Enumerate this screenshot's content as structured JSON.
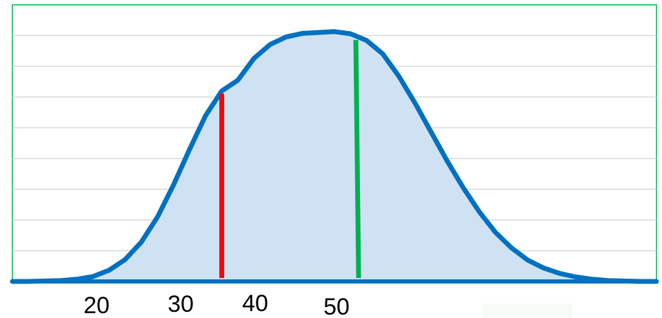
{
  "chart_data": {
    "type": "area",
    "title": "",
    "xlabel": "",
    "ylabel": "",
    "x": [
      10,
      12,
      14,
      16,
      18,
      20,
      22,
      24,
      26,
      28,
      30,
      32,
      34,
      36,
      38,
      40,
      42,
      44,
      46,
      48,
      50,
      52,
      54,
      56,
      58,
      60,
      62,
      64,
      66,
      68,
      70,
      72,
      74,
      76,
      78,
      80,
      82,
      84,
      86,
      88,
      90
    ],
    "series": [
      {
        "values": [
          0.0,
          0.0,
          0.01,
          0.02,
          0.05,
          0.11,
          0.25,
          0.49,
          0.88,
          1.44,
          2.16,
          2.96,
          3.72,
          4.27,
          4.51,
          5.0,
          5.31,
          5.48,
          5.56,
          5.58,
          5.6,
          5.55,
          5.4,
          5.1,
          4.6,
          4.0,
          3.35,
          2.7,
          2.1,
          1.56,
          1.1,
          0.75,
          0.48,
          0.3,
          0.18,
          0.1,
          0.05,
          0.02,
          0.01,
          0.0,
          0.0
        ]
      }
    ],
    "xlim": [
      10,
      90
    ],
    "ylim": [
      0,
      6.2
    ],
    "x_ticks": [
      "20",
      "30",
      "40",
      "50"
    ],
    "grid": true,
    "legend": "none",
    "markers": [
      {
        "name": "red-marker",
        "x": 36,
        "color": "#ff0000"
      },
      {
        "name": "green-marker",
        "x": 53,
        "color": "#00b050"
      }
    ],
    "colors": {
      "curve": "#0070c0",
      "fill": "#cfe2f3",
      "grid": "#d9d9d9",
      "frame": "#00b050",
      "baseline": "#0070c0"
    }
  }
}
